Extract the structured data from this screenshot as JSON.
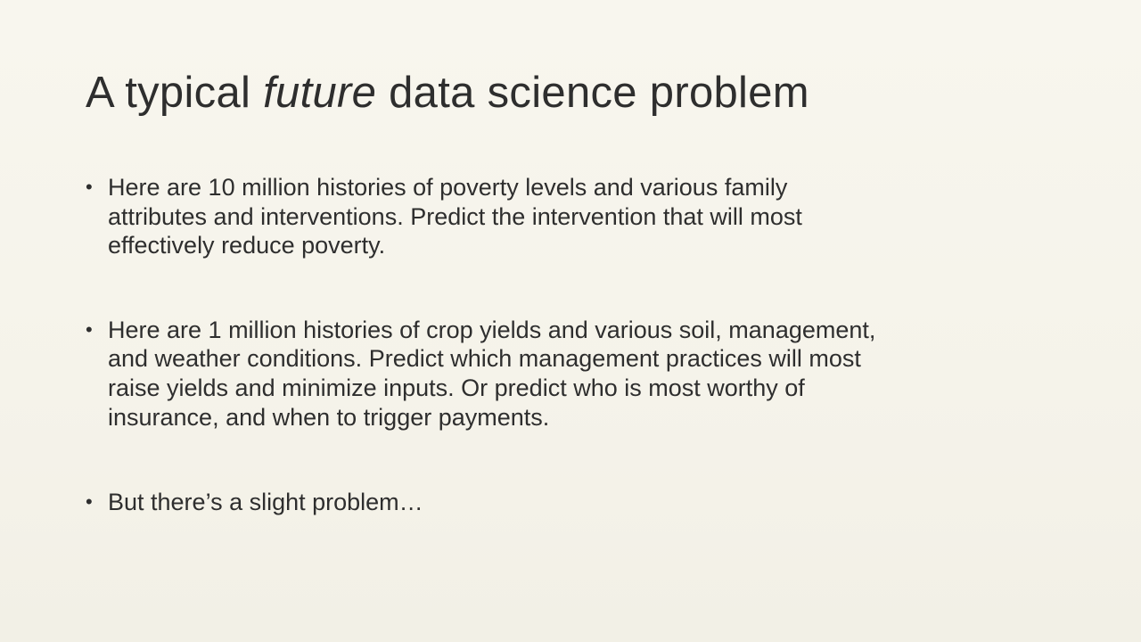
{
  "slide": {
    "title_prefix": "A typical ",
    "title_emphasis": "future",
    "title_suffix": " data science problem",
    "bullets": [
      "Here are 10 million histories of poverty levels and various family attributes and interventions. Predict the intervention that will most effectively reduce poverty.",
      "Here are 1 million histories of crop yields and various soil, management, and weather conditions. Predict which management practices will most raise yields and minimize inputs. Or predict who is most worthy of insurance, and when to trigger payments.",
      "But there’s a slight problem…"
    ],
    "bullet_glyph": "•"
  }
}
